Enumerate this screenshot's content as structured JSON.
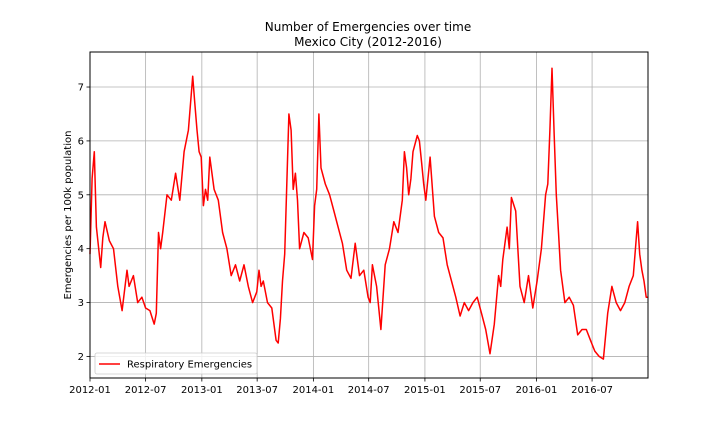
{
  "chart_data": {
    "type": "line",
    "title": "Number of Emergencies over time",
    "subtitle": "Mexico City (2012-2016)",
    "xlabel": "",
    "ylabel": "Emergencies per 100k population",
    "xlim": [
      "2012-01-01",
      "2016-12-31"
    ],
    "ylim": [
      1.6,
      7.65
    ],
    "x_ticks": [
      "2012-01",
      "2012-07",
      "2013-01",
      "2013-07",
      "2014-01",
      "2014-07",
      "2015-01",
      "2015-07",
      "2016-01",
      "2016-07"
    ],
    "y_ticks": [
      2,
      3,
      4,
      5,
      6,
      7
    ],
    "grid": true,
    "legend_position": "lower-left",
    "series": [
      {
        "name": "Respiratory Emergencies",
        "color": "#ff0000",
        "x": [
          "2012-01-01",
          "2012-01-08",
          "2012-01-15",
          "2012-01-22",
          "2012-02-05",
          "2012-02-12",
          "2012-02-19",
          "2012-03-04",
          "2012-03-18",
          "2012-04-01",
          "2012-04-15",
          "2012-05-01",
          "2012-05-08",
          "2012-05-22",
          "2012-06-05",
          "2012-06-19",
          "2012-07-01",
          "2012-07-15",
          "2012-07-29",
          "2012-08-05",
          "2012-08-12",
          "2012-08-19",
          "2012-08-26",
          "2012-09-09",
          "2012-09-23",
          "2012-10-07",
          "2012-10-21",
          "2012-11-04",
          "2012-11-18",
          "2012-12-02",
          "2012-12-09",
          "2012-12-16",
          "2012-12-23",
          "2012-12-30",
          "2013-01-06",
          "2013-01-13",
          "2013-01-20",
          "2013-01-27",
          "2013-02-10",
          "2013-02-24",
          "2013-03-10",
          "2013-03-24",
          "2013-04-07",
          "2013-04-21",
          "2013-05-05",
          "2013-05-19",
          "2013-06-02",
          "2013-06-16",
          "2013-06-30",
          "2013-07-07",
          "2013-07-14",
          "2013-07-21",
          "2013-08-04",
          "2013-08-18",
          "2013-09-01",
          "2013-09-08",
          "2013-09-15",
          "2013-09-22",
          "2013-09-29",
          "2013-10-06",
          "2013-10-13",
          "2013-10-20",
          "2013-10-27",
          "2013-11-03",
          "2013-11-10",
          "2013-11-17",
          "2013-12-01",
          "2013-12-15",
          "2013-12-29",
          "2014-01-05",
          "2014-01-12",
          "2014-01-19",
          "2014-01-26",
          "2014-02-09",
          "2014-02-23",
          "2014-03-09",
          "2014-03-23",
          "2014-04-06",
          "2014-04-20",
          "2014-05-04",
          "2014-05-18",
          "2014-06-01",
          "2014-06-15",
          "2014-06-29",
          "2014-07-06",
          "2014-07-13",
          "2014-07-27",
          "2014-08-10",
          "2014-08-24",
          "2014-09-07",
          "2014-09-21",
          "2014-10-05",
          "2014-10-19",
          "2014-10-26",
          "2014-11-02",
          "2014-11-09",
          "2014-11-16",
          "2014-11-23",
          "2014-12-07",
          "2014-12-14",
          "2014-12-21",
          "2014-12-28",
          "2015-01-04",
          "2015-01-18",
          "2015-02-01",
          "2015-02-15",
          "2015-03-01",
          "2015-03-15",
          "2015-03-29",
          "2015-04-12",
          "2015-04-26",
          "2015-05-10",
          "2015-05-24",
          "2015-06-07",
          "2015-06-21",
          "2015-07-05",
          "2015-07-19",
          "2015-08-02",
          "2015-08-16",
          "2015-08-30",
          "2015-09-06",
          "2015-09-13",
          "2015-09-27",
          "2015-10-04",
          "2015-10-11",
          "2015-10-25",
          "2015-11-08",
          "2015-11-22",
          "2015-12-06",
          "2015-12-20",
          "2016-01-03",
          "2016-01-17",
          "2016-01-31",
          "2016-02-07",
          "2016-02-14",
          "2016-02-21",
          "2016-02-28",
          "2016-03-06",
          "2016-03-13",
          "2016-03-20",
          "2016-04-03",
          "2016-04-17",
          "2016-05-01",
          "2016-05-15",
          "2016-05-29",
          "2016-06-12",
          "2016-06-26",
          "2016-07-10",
          "2016-07-24",
          "2016-08-07",
          "2016-08-21",
          "2016-09-04",
          "2016-09-18",
          "2016-10-02",
          "2016-10-16",
          "2016-10-30",
          "2016-11-13",
          "2016-11-27",
          "2016-12-04",
          "2016-12-11",
          "2016-12-18",
          "2016-12-25",
          "2016-12-31"
        ],
        "y": [
          3.9,
          5.3,
          5.8,
          4.4,
          3.65,
          4.2,
          4.5,
          4.15,
          4.0,
          3.3,
          2.85,
          3.6,
          3.3,
          3.5,
          3.0,
          3.1,
          2.9,
          2.85,
          2.6,
          2.8,
          4.3,
          4.0,
          4.3,
          5.0,
          4.9,
          5.4,
          4.9,
          5.8,
          6.2,
          7.2,
          6.7,
          6.2,
          5.8,
          5.7,
          4.8,
          5.1,
          4.9,
          5.7,
          5.1,
          4.9,
          4.3,
          4.0,
          3.5,
          3.7,
          3.4,
          3.7,
          3.3,
          3.0,
          3.2,
          3.6,
          3.3,
          3.4,
          3.0,
          2.9,
          2.3,
          2.25,
          2.7,
          3.4,
          3.9,
          5.2,
          6.5,
          6.2,
          5.1,
          5.4,
          4.9,
          4.0,
          4.3,
          4.2,
          3.8,
          4.8,
          5.1,
          6.5,
          5.5,
          5.2,
          5.0,
          4.7,
          4.4,
          4.1,
          3.6,
          3.45,
          4.1,
          3.5,
          3.6,
          3.1,
          3.0,
          3.7,
          3.3,
          2.5,
          3.7,
          4.0,
          4.5,
          4.3,
          4.9,
          5.8,
          5.5,
          5.0,
          5.3,
          5.8,
          6.1,
          6.0,
          5.6,
          5.2,
          4.9,
          5.7,
          4.6,
          4.3,
          4.2,
          3.7,
          3.4,
          3.1,
          2.75,
          3.0,
          2.85,
          3.0,
          3.1,
          2.8,
          2.5,
          2.05,
          2.6,
          3.5,
          3.3,
          3.8,
          4.4,
          4.0,
          4.95,
          4.7,
          3.3,
          3.0,
          3.5,
          2.9,
          3.4,
          4.0,
          5.0,
          5.2,
          6.2,
          7.35,
          6.1,
          5.0,
          4.3,
          3.6,
          3.0,
          3.1,
          2.95,
          2.4,
          2.5,
          2.5,
          2.3,
          2.1,
          2.0,
          1.95,
          2.8,
          3.3,
          3.0,
          2.85,
          3.0,
          3.3,
          3.5,
          4.5,
          3.9,
          3.6,
          3.4,
          3.1,
          3.1
        ]
      }
    ]
  }
}
